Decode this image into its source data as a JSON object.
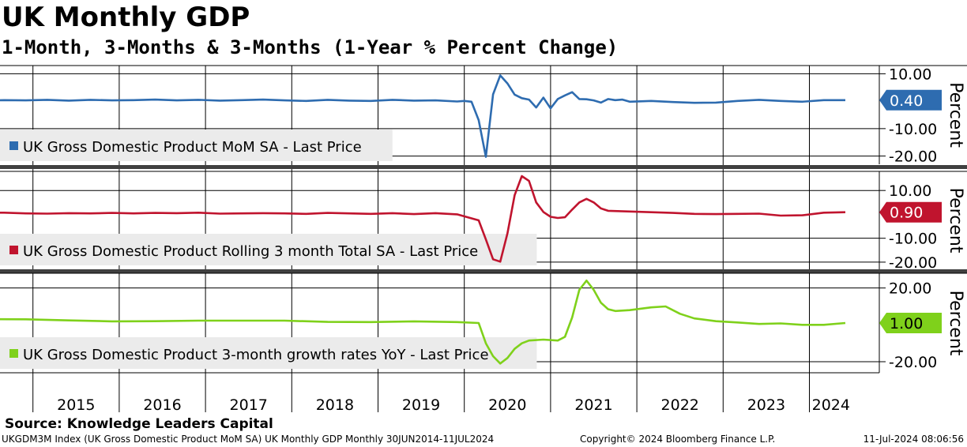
{
  "header": {
    "title": "UK Monthly GDP",
    "subtitle": "1-Month, 3-Months & 3-Months (1-Year % Percent Change)"
  },
  "footer": {
    "source": "Source: Knowledge Leaders Capital",
    "index_line": "UKGDM3M Index (UK Gross Domestic Product MoM SA) UK Monthly GDP  Monthly 30JUN2014-11JUL2024",
    "copyright": "Copyright© 2024 Bloomberg Finance L.P.",
    "timestamp": "11-Jul-2024 08:06:56"
  },
  "colors": {
    "mom": "#2e6cb0",
    "rolling": "#c0142e",
    "yoy": "#7fd11b",
    "grid": "#000000",
    "separator": "#404040",
    "legend_bg": "#ebebeb"
  },
  "chart_data": {
    "type": "line",
    "x_range": [
      "2014-06",
      "2024-06"
    ],
    "x_ticks": [
      "2015",
      "2016",
      "2017",
      "2018",
      "2019",
      "2020",
      "2021",
      "2022",
      "2023",
      "2024"
    ],
    "panels": [
      {
        "id": "mom",
        "axis_label": "Percent",
        "ylim": [
          -23,
          13
        ],
        "y_ticks": [
          10,
          -10,
          -20
        ],
        "y_tick_labels": [
          "10.00",
          "-10.00",
          "-20.00"
        ],
        "series": [
          {
            "name": "UK Gross Domestic Product MoM SA - Last Price",
            "last_value": 0.4,
            "last_label": "0.40",
            "points": [
              [
                "2014-06",
                0.2
              ],
              [
                "2014-09",
                0.4
              ],
              [
                "2014-12",
                0.3
              ],
              [
                "2015-03",
                0.5
              ],
              [
                "2015-06",
                0.2
              ],
              [
                "2015-09",
                0.5
              ],
              [
                "2015-12",
                0.3
              ],
              [
                "2016-03",
                0.4
              ],
              [
                "2016-06",
                0.6
              ],
              [
                "2016-09",
                0.3
              ],
              [
                "2016-12",
                0.5
              ],
              [
                "2017-03",
                0.2
              ],
              [
                "2017-06",
                0.4
              ],
              [
                "2017-09",
                0.6
              ],
              [
                "2017-12",
                0.3
              ],
              [
                "2018-03",
                0.1
              ],
              [
                "2018-06",
                0.5
              ],
              [
                "2018-09",
                0.2
              ],
              [
                "2018-12",
                0.1
              ],
              [
                "2019-03",
                0.5
              ],
              [
                "2019-06",
                0.2
              ],
              [
                "2019-09",
                0.3
              ],
              [
                "2019-12",
                -0.1
              ],
              [
                "2020-01",
                0.1
              ],
              [
                "2020-02",
                -0.2
              ],
              [
                "2020-03",
                -6.9
              ],
              [
                "2020-04",
                -20.3
              ],
              [
                "2020-05",
                2.5
              ],
              [
                "2020-06",
                9.4
              ],
              [
                "2020-07",
                6.5
              ],
              [
                "2020-08",
                2.4
              ],
              [
                "2020-09",
                1.1
              ],
              [
                "2020-10",
                0.6
              ],
              [
                "2020-11",
                -2.3
              ],
              [
                "2020-12",
                1.3
              ],
              [
                "2021-01",
                -2.6
              ],
              [
                "2021-02",
                0.8
              ],
              [
                "2021-03",
                2.1
              ],
              [
                "2021-04",
                3.3
              ],
              [
                "2021-05",
                0.8
              ],
              [
                "2021-06",
                0.7
              ],
              [
                "2021-07",
                0.3
              ],
              [
                "2021-08",
                -0.5
              ],
              [
                "2021-09",
                0.8
              ],
              [
                "2021-10",
                0.4
              ],
              [
                "2021-11",
                0.6
              ],
              [
                "2021-12",
                -0.2
              ],
              [
                "2022-03",
                0.1
              ],
              [
                "2022-06",
                -0.3
              ],
              [
                "2022-09",
                -0.6
              ],
              [
                "2022-12",
                -0.5
              ],
              [
                "2023-03",
                0.1
              ],
              [
                "2023-06",
                0.5
              ],
              [
                "2023-09",
                0.1
              ],
              [
                "2023-12",
                -0.2
              ],
              [
                "2024-03",
                0.4
              ],
              [
                "2024-06",
                0.4
              ]
            ]
          }
        ]
      },
      {
        "id": "rolling",
        "axis_label": "Percent",
        "ylim": [
          -23,
          18
        ],
        "y_ticks": [
          10,
          -10,
          -20
        ],
        "y_tick_labels": [
          "10.00",
          "-10.00",
          "-20.00"
        ],
        "series": [
          {
            "name": "UK Gross Domestic Product Rolling 3 month Total SA - Last Price",
            "last_value": 0.9,
            "last_label": "0.90",
            "points": [
              [
                "2014-06",
                0.6
              ],
              [
                "2014-09",
                0.7
              ],
              [
                "2014-12",
                0.4
              ],
              [
                "2015-03",
                0.3
              ],
              [
                "2015-06",
                0.5
              ],
              [
                "2015-09",
                0.4
              ],
              [
                "2015-12",
                0.6
              ],
              [
                "2016-03",
                0.4
              ],
              [
                "2016-06",
                0.6
              ],
              [
                "2016-09",
                0.5
              ],
              [
                "2016-12",
                0.7
              ],
              [
                "2017-03",
                0.3
              ],
              [
                "2017-06",
                0.4
              ],
              [
                "2017-09",
                0.5
              ],
              [
                "2017-12",
                0.4
              ],
              [
                "2018-03",
                0.2
              ],
              [
                "2018-06",
                0.6
              ],
              [
                "2018-09",
                0.4
              ],
              [
                "2018-12",
                0.2
              ],
              [
                "2019-03",
                0.5
              ],
              [
                "2019-06",
                0.1
              ],
              [
                "2019-09",
                0.5
              ],
              [
                "2019-12",
                0.0
              ],
              [
                "2020-03",
                -2.5
              ],
              [
                "2020-04",
                -10.5
              ],
              [
                "2020-05",
                -18.8
              ],
              [
                "2020-06",
                -19.8
              ],
              [
                "2020-07",
                -8.0
              ],
              [
                "2020-08",
                8.0
              ],
              [
                "2020-09",
                16.0
              ],
              [
                "2020-10",
                14.0
              ],
              [
                "2020-11",
                5.0
              ],
              [
                "2020-12",
                1.0
              ],
              [
                "2021-01",
                -1.0
              ],
              [
                "2021-02",
                -1.5
              ],
              [
                "2021-03",
                -1.2
              ],
              [
                "2021-04",
                2.0
              ],
              [
                "2021-05",
                5.0
              ],
              [
                "2021-06",
                6.5
              ],
              [
                "2021-07",
                5.0
              ],
              [
                "2021-08",
                2.5
              ],
              [
                "2021-09",
                1.5
              ],
              [
                "2021-12",
                1.2
              ],
              [
                "2022-03",
                0.9
              ],
              [
                "2022-06",
                0.6
              ],
              [
                "2022-09",
                0.2
              ],
              [
                "2022-12",
                0.1
              ],
              [
                "2023-03",
                0.2
              ],
              [
                "2023-06",
                0.3
              ],
              [
                "2023-09",
                -0.5
              ],
              [
                "2023-12",
                -0.4
              ],
              [
                "2024-03",
                0.7
              ],
              [
                "2024-06",
                0.9
              ]
            ]
          }
        ]
      },
      {
        "id": "yoy",
        "axis_label": "Percent",
        "ylim": [
          -26,
          28
        ],
        "y_ticks": [
          20,
          -20
        ],
        "y_tick_labels": [
          "20.00",
          "-20.00"
        ],
        "series": [
          {
            "name": "UK Gross Domestic Product 3-month growth rates YoY - Last Price",
            "last_value": 1.0,
            "last_label": "1.00",
            "points": [
              [
                "2014-06",
                3.1
              ],
              [
                "2014-12",
                3.0
              ],
              [
                "2015-06",
                2.4
              ],
              [
                "2015-12",
                1.9
              ],
              [
                "2016-06",
                2.0
              ],
              [
                "2016-12",
                2.3
              ],
              [
                "2017-06",
                2.3
              ],
              [
                "2017-12",
                2.3
              ],
              [
                "2018-06",
                1.6
              ],
              [
                "2018-12",
                1.5
              ],
              [
                "2019-06",
                1.9
              ],
              [
                "2019-12",
                1.5
              ],
              [
                "2020-03",
                1.0
              ],
              [
                "2020-04",
                -10.0
              ],
              [
                "2020-05",
                -17.0
              ],
              [
                "2020-06",
                -21.0
              ],
              [
                "2020-07",
                -18.0
              ],
              [
                "2020-08",
                -13.0
              ],
              [
                "2020-09",
                -10.0
              ],
              [
                "2020-10",
                -8.5
              ],
              [
                "2020-12",
                -8.0
              ],
              [
                "2021-02",
                -8.5
              ],
              [
                "2021-03",
                -6.5
              ],
              [
                "2021-04",
                4.0
              ],
              [
                "2021-05",
                19.0
              ],
              [
                "2021-06",
                24.0
              ],
              [
                "2021-07",
                19.0
              ],
              [
                "2021-08",
                12.0
              ],
              [
                "2021-09",
                8.5
              ],
              [
                "2021-10",
                7.5
              ],
              [
                "2021-12",
                8.0
              ],
              [
                "2022-03",
                9.5
              ],
              [
                "2022-05",
                10.0
              ],
              [
                "2022-07",
                6.0
              ],
              [
                "2022-09",
                3.5
              ],
              [
                "2022-12",
                2.0
              ],
              [
                "2023-03",
                1.3
              ],
              [
                "2023-06",
                0.5
              ],
              [
                "2023-09",
                0.8
              ],
              [
                "2023-12",
                0.0
              ],
              [
                "2024-03",
                0.0
              ],
              [
                "2024-06",
                1.0
              ]
            ]
          }
        ]
      }
    ]
  }
}
